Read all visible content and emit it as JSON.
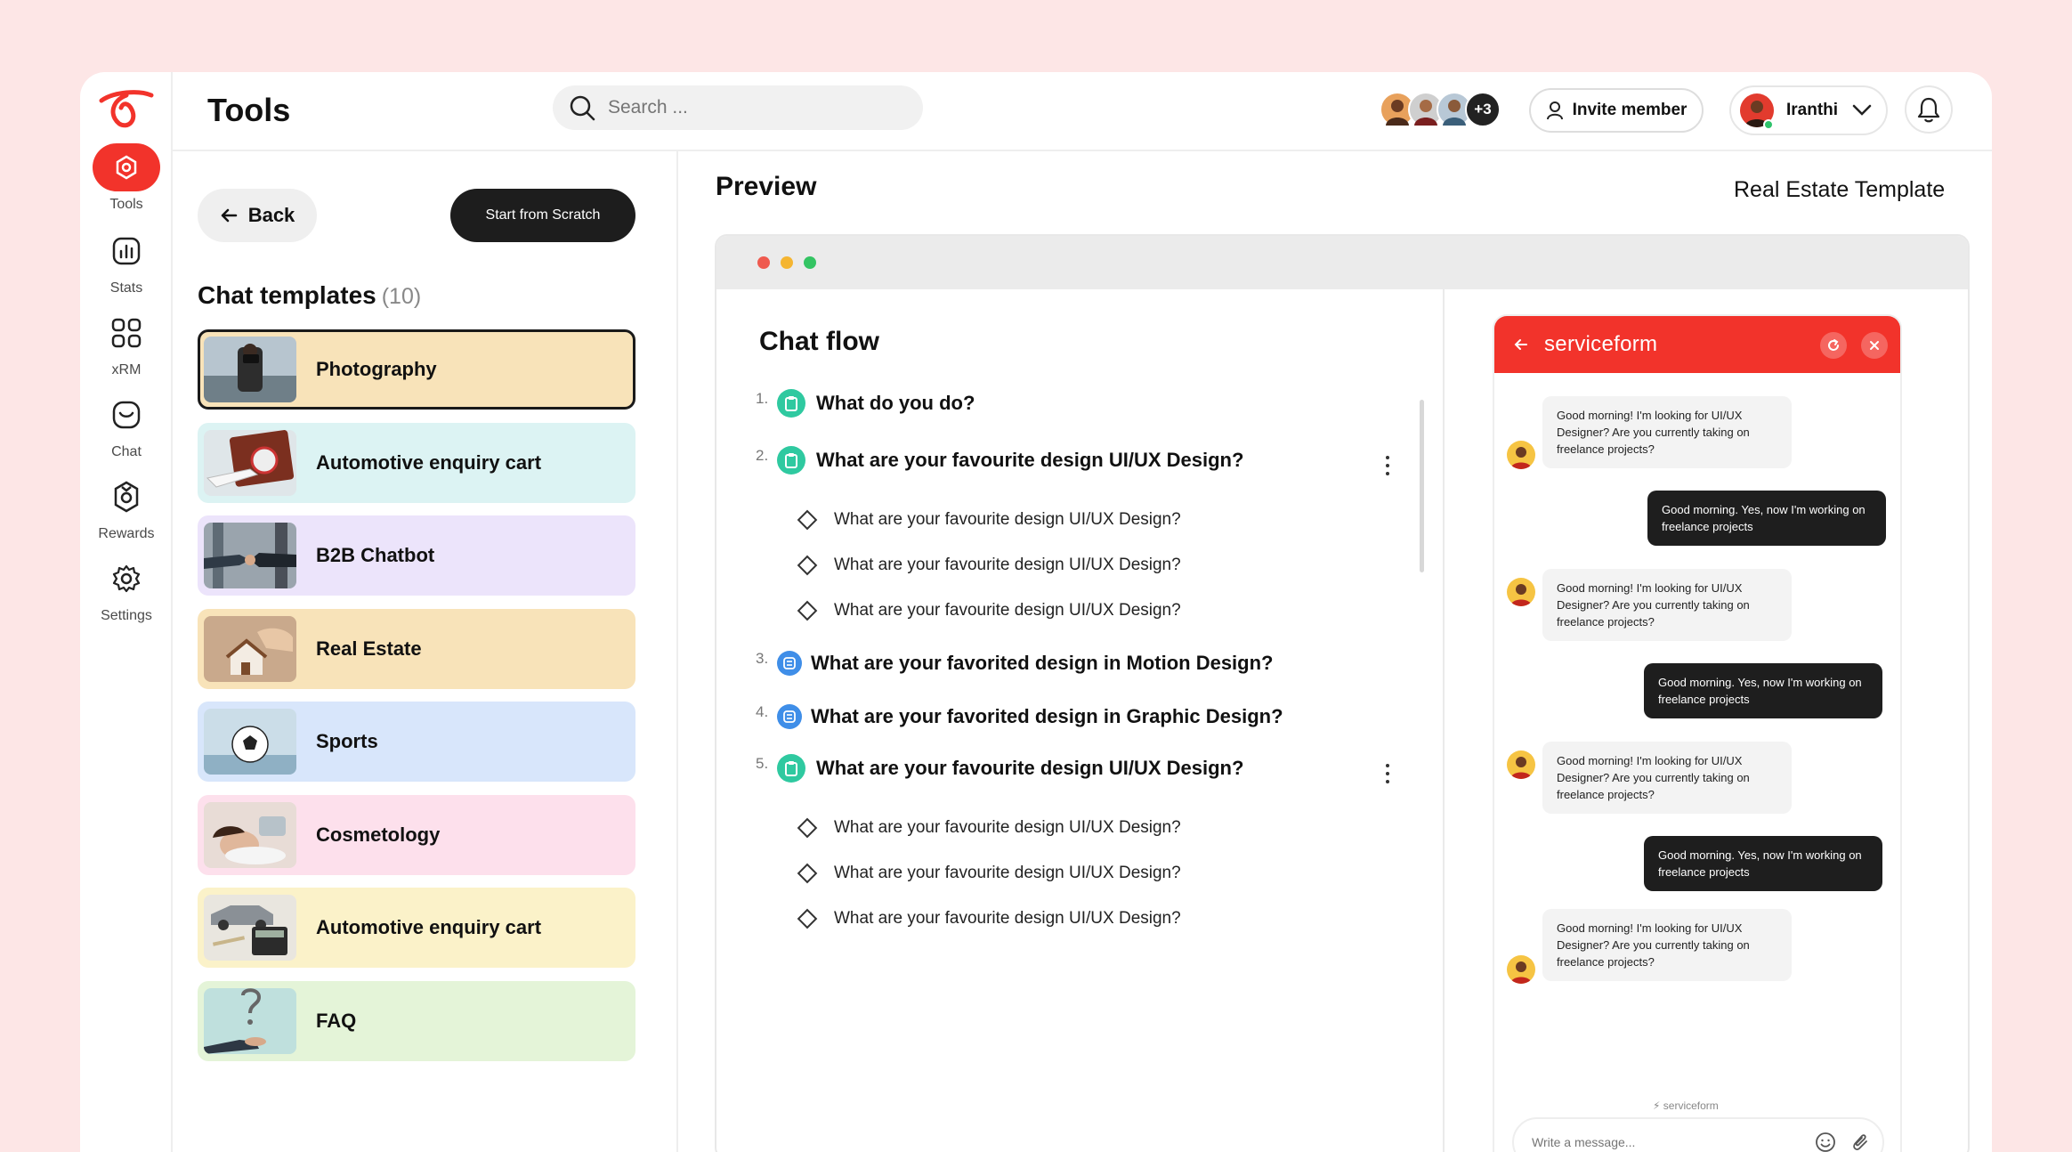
{
  "header": {
    "title": "Tools",
    "search_placeholder": "Search ...",
    "avatars_more": "+3",
    "invite_label": "Invite member",
    "user_name": "Iranthi"
  },
  "nav": {
    "items": [
      {
        "label": "Tools",
        "icon": "hexagon-icon",
        "active": true
      },
      {
        "label": "Stats",
        "icon": "stats-icon"
      },
      {
        "label": "xRM",
        "icon": "grid-icon"
      },
      {
        "label": "Chat",
        "icon": "chat-icon"
      },
      {
        "label": "Rewards",
        "icon": "rewards-icon"
      },
      {
        "label": "Settings",
        "icon": "gear-icon"
      }
    ]
  },
  "templates": {
    "back_label": "Back",
    "scratch_label": "Start from Scratch",
    "heading": "Chat templates",
    "count": "(10)",
    "items": [
      {
        "name": "Photography",
        "bg": "#f8e3b9",
        "selected": true
      },
      {
        "name": "Automotive enquiry cart",
        "bg": "#dcf3f3"
      },
      {
        "name": "B2B Chatbot",
        "bg": "#ece4fb"
      },
      {
        "name": "Real Estate",
        "bg": "#f8e3b9"
      },
      {
        "name": "Sports",
        "bg": "#d8e6fb"
      },
      {
        "name": "Cosmetology",
        "bg": "#fde0ec"
      },
      {
        "name": "Automotive enquiry cart",
        "bg": "#fbf2c9"
      },
      {
        "name": "FAQ",
        "bg": "#e4f4d8"
      }
    ]
  },
  "preview": {
    "title": "Preview",
    "template_name": "Real Estate Template",
    "flow_title": "Chat flow",
    "questions": [
      {
        "num": "1.",
        "text": "What do you do?",
        "color": "#2fc9a0"
      },
      {
        "num": "2.",
        "text": "What are your favourite design UI/UX Design?",
        "color": "#2fc9a0",
        "options": [
          "What are your favourite design UI/UX Design?",
          "What are your favourite design UI/UX Design?",
          "What are your favourite design UI/UX Design?"
        ]
      },
      {
        "num": "3.",
        "text": "What are your favorited design in Motion Design?",
        "color": "#3f8ee8"
      },
      {
        "num": "4.",
        "text": "What are your favorited design in Graphic Design?",
        "color": "#3f8ee8"
      },
      {
        "num": "5.",
        "text": "What are your favourite design UI/UX Design?",
        "color": "#2fc9a0",
        "options": [
          "What are your favourite design UI/UX Design?",
          "What are your favourite design UI/UX Design?",
          "What are your favourite design UI/UX Design?"
        ]
      }
    ]
  },
  "widget": {
    "brand": "serviceform",
    "messages": [
      {
        "from": "bot",
        "text": "Good morning! I'm looking for UI/UX Designer? Are you currently taking on freelance projects?"
      },
      {
        "from": "user",
        "text": "Good morning. Yes, now I'm working on freelance projects"
      },
      {
        "from": "bot",
        "text": "Good morning! I'm looking for UI/UX Designer? Are you currently taking on freelance projects?"
      },
      {
        "from": "user",
        "text": "Good morning. Yes, now I'm working on freelance projects"
      },
      {
        "from": "bot",
        "text": "Good morning! I'm looking for UI/UX Designer? Are you currently taking on freelance projects?"
      },
      {
        "from": "user",
        "text": "Good morning. Yes, now I'm working on freelance projects"
      },
      {
        "from": "bot",
        "text": "Good morning! I'm looking for UI/UX Designer? Are you currently taking on freelance projects?"
      }
    ],
    "powered_by": "serviceform",
    "input_placeholder": "Write a message..."
  },
  "colors": {
    "accent": "#f2332b",
    "dark": "#1d1d1d"
  }
}
